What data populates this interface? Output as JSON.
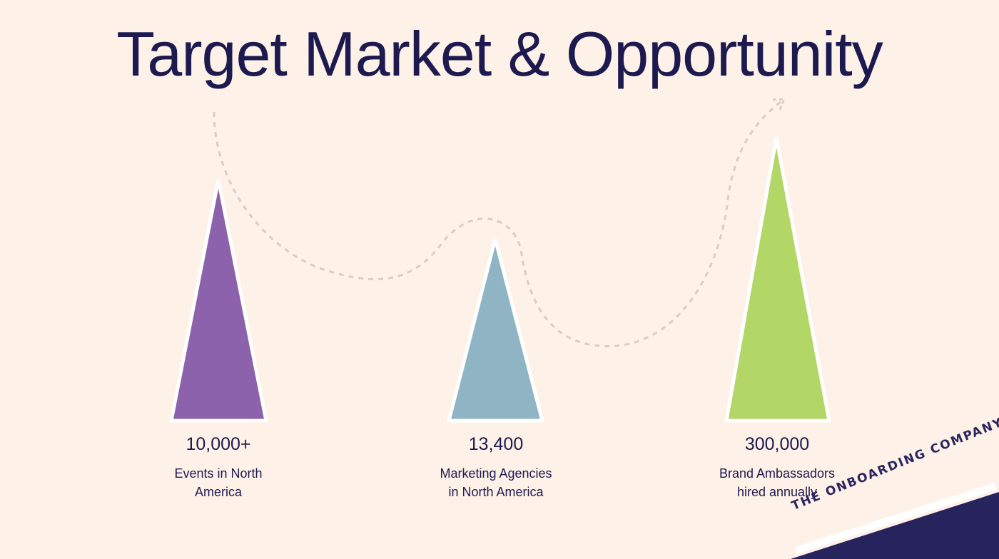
{
  "slide": {
    "title": "Target Market & Opportunity",
    "metrics": [
      {
        "value": "10,000+",
        "label_line1": "Events in North",
        "label_line2": "America",
        "color": "#8b62ab"
      },
      {
        "value": "13,400",
        "label_line1": "Marketing Agencies",
        "label_line2": "in North America",
        "color": "#8fb5c5"
      },
      {
        "value": "300,000",
        "label_line1": "Brand Ambassadors",
        "label_line2": "hired annually",
        "color": "#b2d766"
      }
    ],
    "brand": {
      "name": "THE ONBOARDING COMPANY",
      "color": "#27235c"
    }
  }
}
